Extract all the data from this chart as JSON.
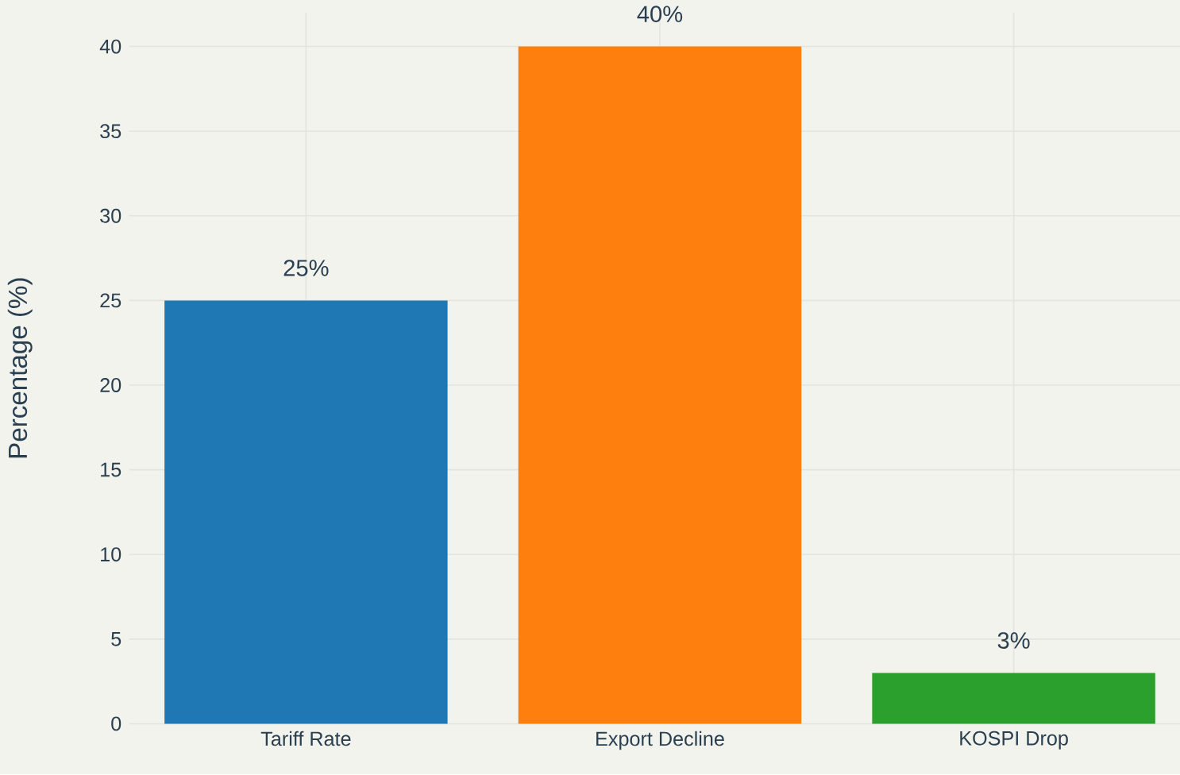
{
  "chart_data": {
    "type": "bar",
    "ylabel": "Percentage (%)",
    "categories": [
      "Tariff Rate",
      "Export Decline",
      "KOSPI Drop"
    ],
    "values": [
      25,
      40,
      3
    ],
    "colors": [
      "#1f77b4",
      "#ff7f0e",
      "#2ca02c"
    ],
    "value_labels": [
      "25%",
      "40%",
      "3%"
    ],
    "ylim": [
      0,
      42
    ],
    "yticks": [
      0,
      5,
      10,
      15,
      20,
      25,
      30,
      35,
      40
    ],
    "grid": true
  }
}
